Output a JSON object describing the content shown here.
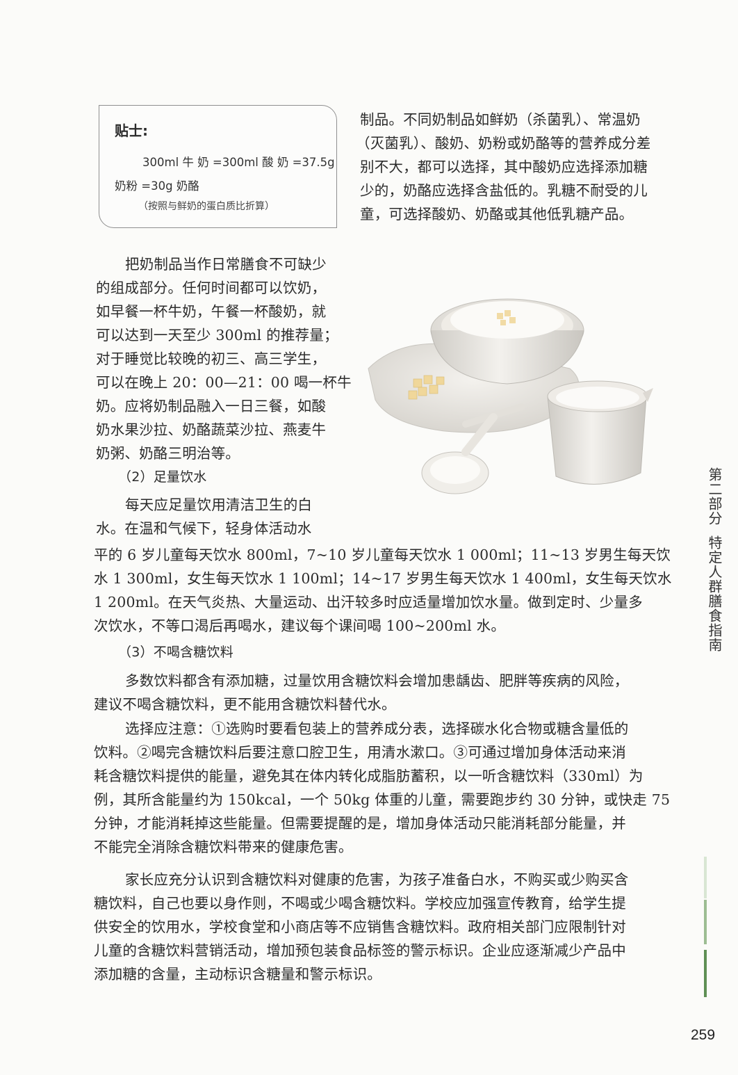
{
  "tip": {
    "title": "贴士:",
    "line1": "300ml 牛 奶 =300ml 酸 奶 =37.5g",
    "line2": "奶粉 =30g 奶酪",
    "note": "（按照与鲜奶的蛋白质比折算）"
  },
  "right_col": [
    "制品。不同奶制品如鲜奶（杀菌乳）、常温奶",
    "（灭菌乳）、酸奶、奶粉或奶酪等的营养成分差",
    "别不大，都可以选择，其中酸奶应选择添加糖",
    "少的，奶酪应选择含盐低的。乳糖不耐受的儿",
    "童，可选择酸奶、奶酪或其他低乳糖产品。"
  ],
  "left_col": [
    "把奶制品当作日常膳食不可缺少",
    "的组成部分。任何时间都可以饮奶，",
    "如早餐一杯牛奶，午餐一杯酸奶，就",
    "可以达到一天至少 300ml 的推荐量；",
    "对于睡觉比较晚的初三、高三学生，",
    "可以在晚上 20：00—21：00 喝一杯牛",
    "奶。应将奶制品融入一日三餐，如酸",
    "奶水果沙拉、奶酪蔬菜沙拉、燕麦牛",
    "奶粥、奶酪三明治等。",
    "（2）足量饮水",
    "每天应足量饮用清洁卫生的白",
    "水。在温和气候下，轻身体活动水"
  ],
  "full_col": [
    "平的 6 岁儿童每天饮水 800ml，7~10 岁儿童每天饮水 1 000ml；11~13 岁男生每天饮",
    "水 1 300ml，女生每天饮水 1 100ml；14~17 岁男生每天饮水 1 400ml，女生每天饮水",
    "1 200ml。在天气炎热、大量运动、出汗较多时应适量增加饮水量。做到定时、少量多",
    "次饮水，不等口渴后再喝水，建议每个课间喝 100~200ml 水。",
    "（3）不喝含糖饮料",
    "多数饮料都含有添加糖，过量饮用含糖饮料会增加患龋齿、肥胖等疾病的风险，",
    "建议不喝含糖饮料，更不能用含糖饮料替代水。",
    "选择应注意：①选购时要看包装上的营养成分表，选择碳水化合物或糖含量低的",
    "饮料。②喝完含糖饮料后要注意口腔卫生，用清水漱口。③可通过增加身体活动来消",
    "耗含糖饮料提供的能量，避免其在体内转化成脂肪蓄积，以一听含糖饮料（330ml）为",
    "例，其所含能量约为 150kcal，一个 50kg 体重的儿童，需要跑步约 30 分钟，或快走 75",
    "分钟，才能消耗掉这些能量。但需要提醒的是，增加身体活动只能消耗部分能量，并",
    "不能完全消除含糖饮料带来的健康危害。",
    "家长应充分认识到含糖饮料对健康的危害，为孩子准备白水，不购买或少购买含",
    "糖饮料，自己也要以身作则，不喝或少喝含糖饮料。学校应加强宣传教育，给学生提",
    "供安全的饮用水，学校食堂和小商店等不应销售含糖饮料。政府相关部门应限制针对",
    "儿童的含糖饮料营销活动，增加预包装食品标签的警示标识。企业应逐渐减少产品中",
    "添加糖的含量，主动标识含糖量和警示标识。"
  ],
  "side_tab": {
    "part": "第二部分",
    "title": "特定人群膳食指南"
  },
  "page_number": "259"
}
